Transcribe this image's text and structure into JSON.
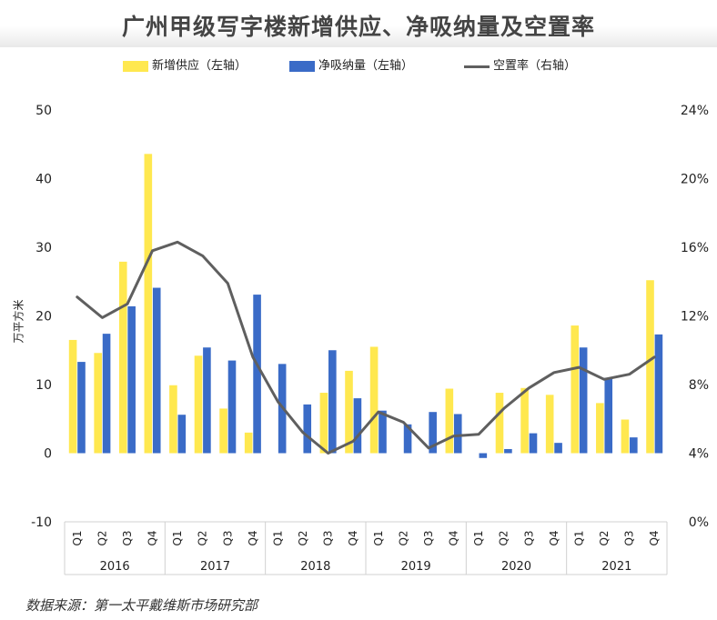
{
  "title": "广州甲级写字楼新增供应、净吸纳量及空置率",
  "ylabel": "万平方米",
  "source": "数据来源：第一太平戴维斯市场研究部",
  "colors": {
    "supply": "#FFE84F",
    "absorption": "#3A6BC7",
    "vacancy": "#5F5F5F"
  },
  "chart_data": {
    "type": "bar",
    "title": "广州甲级写字楼新增供应、净吸纳量及空置率",
    "ylabel": "万平方米",
    "ylim": [
      -10,
      50
    ],
    "y_ticks": [
      "-10",
      "0",
      "10",
      "20",
      "30",
      "40",
      "50"
    ],
    "y2lim": [
      0,
      24
    ],
    "y2_ticks": [
      "0%",
      "4%",
      "8%",
      "12%",
      "16%",
      "20%",
      "24%"
    ],
    "categories": [
      "Q1",
      "Q2",
      "Q3",
      "Q4",
      "Q1",
      "Q2",
      "Q3",
      "Q4",
      "Q1",
      "Q2",
      "Q3",
      "Q4",
      "Q1",
      "Q2",
      "Q3",
      "Q4",
      "Q1",
      "Q2",
      "Q3",
      "Q4",
      "Q1",
      "Q2",
      "Q3",
      "Q4"
    ],
    "years": [
      "2016",
      "2017",
      "2018",
      "2019",
      "2020",
      "2021"
    ],
    "legend_position": "top",
    "grid": false,
    "series": [
      {
        "name": "新增供应（左轴）",
        "type": "bar",
        "axis": "left",
        "values": [
          16.5,
          14.6,
          27.9,
          43.6,
          9.9,
          14.2,
          6.5,
          3.0,
          0,
          0,
          8.8,
          12.0,
          15.5,
          0,
          0,
          9.4,
          0,
          8.8,
          9.5,
          8.5,
          18.6,
          7.3,
          4.9,
          25.2
        ]
      },
      {
        "name": "净吸纳量（左轴）",
        "type": "bar",
        "axis": "left",
        "values": [
          13.3,
          17.4,
          21.4,
          24.1,
          5.6,
          15.4,
          13.5,
          23.1,
          13.0,
          7.1,
          15.0,
          8.0,
          6.2,
          4.2,
          6.0,
          5.7,
          -0.7,
          0.6,
          2.9,
          1.5,
          15.4,
          11.0,
          2.3,
          17.3
        ]
      },
      {
        "name": "空置率（右轴）",
        "type": "line",
        "axis": "right",
        "values": [
          13.1,
          11.9,
          12.7,
          15.8,
          16.3,
          15.5,
          13.9,
          9.6,
          7.0,
          5.2,
          4.0,
          4.7,
          6.4,
          5.8,
          4.3,
          5.0,
          5.1,
          6.6,
          7.8,
          8.7,
          9.0,
          8.3,
          8.6,
          9.6
        ]
      }
    ]
  }
}
